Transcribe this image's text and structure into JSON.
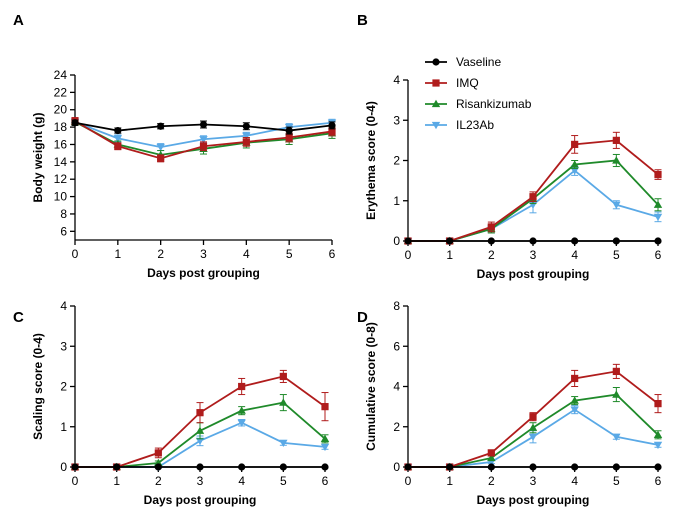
{
  "colors": {
    "Vaseline": "#000000",
    "IMQ": "#b01c1c",
    "Risankizumab": "#1f8a2a",
    "IL23Ab": "#5aa9e6"
  },
  "legend": [
    "Vaseline",
    "IMQ",
    "Risankizumab",
    "IL23Ab"
  ],
  "chart_data": [
    {
      "panel": "A",
      "type": "line",
      "xlabel": "Days post grouping",
      "ylabel": "Body weight (g)",
      "x": [
        0,
        1,
        2,
        3,
        4,
        5,
        6
      ],
      "xticks": [
        "0",
        "1",
        "2",
        "3",
        "4",
        "5",
        "6"
      ],
      "yticks": [
        "6",
        "8",
        "10",
        "12",
        "14",
        "16",
        "18",
        "20",
        "22",
        "24"
      ],
      "ylim": [
        5,
        24
      ],
      "series": [
        {
          "name": "Vaseline",
          "marker": "circle",
          "values": [
            18.5,
            17.6,
            18.1,
            18.3,
            18.1,
            17.6,
            18.2
          ],
          "err": [
            0.3,
            0.3,
            0.3,
            0.4,
            0.4,
            0.4,
            0.4
          ]
        },
        {
          "name": "IMQ",
          "marker": "square",
          "values": [
            18.7,
            15.8,
            14.4,
            15.8,
            16.3,
            16.8,
            17.5
          ],
          "err": [
            0.4,
            0.4,
            0.4,
            0.5,
            0.5,
            0.5,
            0.5
          ]
        },
        {
          "name": "Risankizumab",
          "marker": "triangle-up",
          "values": [
            18.6,
            16.0,
            14.8,
            15.5,
            16.2,
            16.6,
            17.3
          ],
          "err": [
            0.4,
            0.4,
            0.5,
            0.6,
            0.6,
            0.6,
            0.6
          ]
        },
        {
          "name": "IL23Ab",
          "marker": "triangle-down",
          "values": [
            18.6,
            16.7,
            15.7,
            16.6,
            17.0,
            18.0,
            18.5
          ],
          "err": [
            0.4,
            0.4,
            0.4,
            0.4,
            0.4,
            0.4,
            0.4
          ]
        }
      ]
    },
    {
      "panel": "B",
      "type": "line",
      "xlabel": "Days post grouping",
      "ylabel": "Erythema score (0-4)",
      "x": [
        0,
        1,
        2,
        3,
        4,
        5,
        6
      ],
      "xticks": [
        "0",
        "1",
        "2",
        "3",
        "4",
        "5",
        "6"
      ],
      "yticks": [
        "0",
        "1",
        "2",
        "3",
        "4"
      ],
      "ylim": [
        0,
        4
      ],
      "series": [
        {
          "name": "Vaseline",
          "marker": "circle",
          "values": [
            0,
            0,
            0,
            0,
            0,
            0,
            0
          ],
          "err": [
            0,
            0,
            0,
            0,
            0,
            0,
            0
          ]
        },
        {
          "name": "IMQ",
          "marker": "square",
          "values": [
            0,
            0,
            0.35,
            1.1,
            2.4,
            2.5,
            1.65
          ],
          "err": [
            0,
            0,
            0.12,
            0.12,
            0.22,
            0.2,
            0.12
          ]
        },
        {
          "name": "Risankizumab",
          "marker": "triangle-up",
          "values": [
            0,
            0,
            0.3,
            1.05,
            1.9,
            2.0,
            0.9
          ],
          "err": [
            0,
            0,
            0.1,
            0.12,
            0.1,
            0.15,
            0.15
          ]
        },
        {
          "name": "IL23Ab",
          "marker": "triangle-down",
          "values": [
            0,
            0,
            0.3,
            0.9,
            1.75,
            0.9,
            0.6
          ],
          "err": [
            0,
            0,
            0.1,
            0.2,
            0.12,
            0.1,
            0.12
          ]
        }
      ]
    },
    {
      "panel": "C",
      "type": "line",
      "xlabel": "Days post grouping",
      "ylabel": "Scaling score (0-4)",
      "x": [
        0,
        1,
        2,
        3,
        4,
        5,
        6
      ],
      "xticks": [
        "0",
        "1",
        "2",
        "3",
        "4",
        "5",
        "6"
      ],
      "yticks": [
        "0",
        "1",
        "2",
        "3",
        "4"
      ],
      "ylim": [
        0,
        4
      ],
      "series": [
        {
          "name": "Vaseline",
          "marker": "circle",
          "values": [
            0,
            0,
            0,
            0,
            0,
            0,
            0
          ],
          "err": [
            0,
            0,
            0,
            0,
            0,
            0,
            0
          ]
        },
        {
          "name": "IMQ",
          "marker": "square",
          "values": [
            0,
            0,
            0.35,
            1.35,
            2.0,
            2.25,
            1.5
          ],
          "err": [
            0,
            0,
            0.12,
            0.25,
            0.2,
            0.15,
            0.35
          ]
        },
        {
          "name": "Risankizumab",
          "marker": "triangle-up",
          "values": [
            0,
            0,
            0.1,
            0.9,
            1.4,
            1.6,
            0.7
          ],
          "err": [
            0,
            0,
            0.05,
            0.2,
            0.1,
            0.2,
            0.1
          ]
        },
        {
          "name": "IL23Ab",
          "marker": "triangle-down",
          "values": [
            0,
            0,
            0,
            0.65,
            1.1,
            0.6,
            0.5
          ],
          "err": [
            0,
            0,
            0,
            0.12,
            0.08,
            0.06,
            0.06
          ]
        }
      ]
    },
    {
      "panel": "D",
      "type": "line",
      "xlabel": "Days post grouping",
      "ylabel": "Cumulative score (0-8)",
      "x": [
        0,
        1,
        2,
        3,
        4,
        5,
        6
      ],
      "xticks": [
        "0",
        "1",
        "2",
        "3",
        "4",
        "5",
        "6"
      ],
      "yticks": [
        "0",
        "2",
        "4",
        "6",
        "8"
      ],
      "ylim": [
        0,
        8
      ],
      "series": [
        {
          "name": "Vaseline",
          "marker": "circle",
          "values": [
            0,
            0,
            0,
            0,
            0,
            0,
            0
          ],
          "err": [
            0,
            0,
            0,
            0,
            0,
            0,
            0
          ]
        },
        {
          "name": "IMQ",
          "marker": "square",
          "values": [
            0,
            0,
            0.7,
            2.5,
            4.4,
            4.75,
            3.15
          ],
          "err": [
            0,
            0,
            0.15,
            0.2,
            0.4,
            0.35,
            0.45
          ]
        },
        {
          "name": "Risankizumab",
          "marker": "triangle-up",
          "values": [
            0,
            0,
            0.45,
            1.95,
            3.3,
            3.6,
            1.6
          ],
          "err": [
            0,
            0,
            0.1,
            0.25,
            0.2,
            0.35,
            0.2
          ]
        },
        {
          "name": "IL23Ab",
          "marker": "triangle-down",
          "values": [
            0,
            0,
            0.25,
            1.5,
            2.85,
            1.5,
            1.1
          ],
          "err": [
            0,
            0,
            0.08,
            0.3,
            0.2,
            0.12,
            0.12
          ]
        }
      ]
    }
  ]
}
